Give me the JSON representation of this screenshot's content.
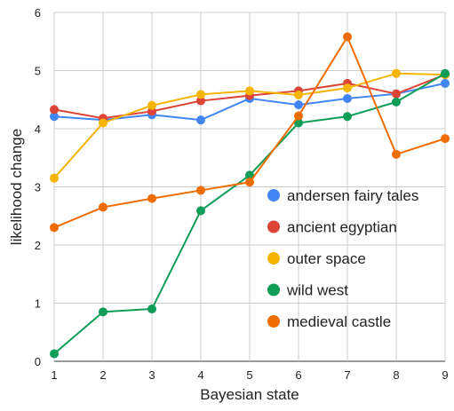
{
  "chart_data": {
    "type": "line",
    "title": "",
    "xlabel": "Bayesian state",
    "ylabel": "likelihood change",
    "x": [
      1,
      2,
      3,
      4,
      5,
      6,
      7,
      8,
      9
    ],
    "xlim": [
      1,
      9
    ],
    "ylim": [
      0,
      6
    ],
    "y_ticks": [
      0,
      1,
      2,
      3,
      4,
      5,
      6
    ],
    "grid": true,
    "legend_position": "bottom-right",
    "series": [
      {
        "name": "andersen fairy tales",
        "color": "#4285F4",
        "values": [
          4.21,
          4.15,
          4.24,
          4.15,
          4.52,
          4.41,
          4.52,
          4.6,
          4.78
        ]
      },
      {
        "name": "ancient egyptian",
        "color": "#DB4437",
        "values": [
          4.33,
          4.18,
          4.3,
          4.48,
          4.57,
          4.65,
          4.78,
          4.6,
          4.93
        ]
      },
      {
        "name": "outer space",
        "color": "#F4B400",
        "values": [
          3.15,
          4.1,
          4.4,
          4.59,
          4.65,
          4.58,
          4.7,
          4.95,
          4.93
        ]
      },
      {
        "name": "wild west",
        "color": "#0F9D58",
        "values": [
          0.13,
          0.85,
          0.9,
          2.59,
          3.2,
          4.1,
          4.21,
          4.46,
          4.95
        ]
      },
      {
        "name": "medieval castle",
        "color": "#EF6C00",
        "values": [
          2.3,
          2.65,
          2.8,
          2.94,
          3.08,
          4.22,
          5.58,
          3.56,
          3.83
        ]
      }
    ]
  }
}
